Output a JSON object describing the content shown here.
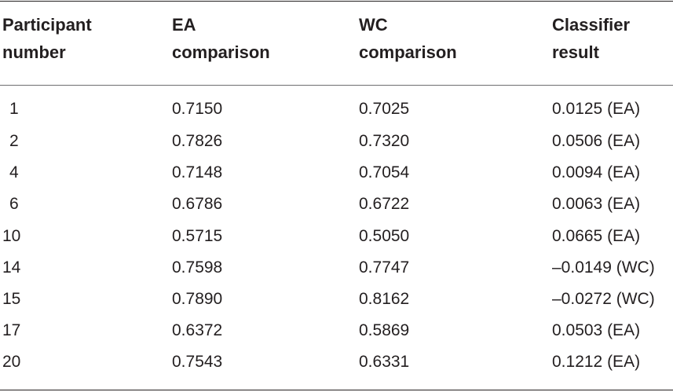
{
  "table": {
    "headers": [
      "Participant\nnumber",
      "EA\ncomparison",
      "WC\ncomparison",
      "Classifier\nresult"
    ],
    "rows": [
      [
        "1",
        "0.7150",
        "0.7025",
        "0.0125 (EA)"
      ],
      [
        "2",
        "0.7826",
        "0.7320",
        "0.0506 (EA)"
      ],
      [
        "4",
        "0.7148",
        "0.7054",
        "0.0094 (EA)"
      ],
      [
        "6",
        "0.6786",
        "0.6722",
        "0.0063 (EA)"
      ],
      [
        "10",
        "0.5715",
        "0.5050",
        "0.0665 (EA)"
      ],
      [
        "14",
        "0.7598",
        "0.7747",
        "–0.0149 (WC)"
      ],
      [
        "15",
        "0.7890",
        "0.8162",
        "–0.0272 (WC)"
      ],
      [
        "17",
        "0.6372",
        "0.5869",
        "0.0503 (EA)"
      ],
      [
        "20",
        "0.7543",
        "0.6331",
        "0.1212 (EA)"
      ]
    ]
  }
}
